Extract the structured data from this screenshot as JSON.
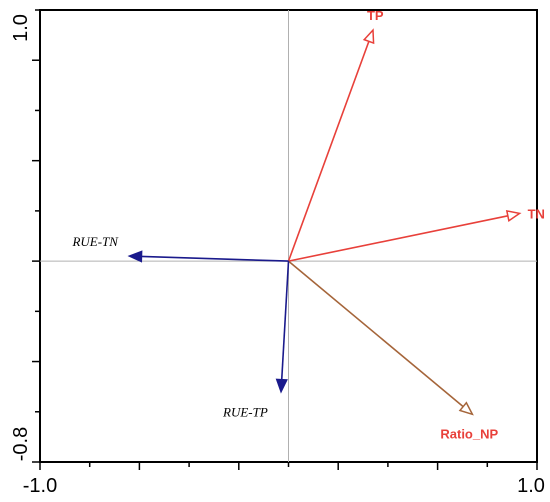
{
  "chart_data": {
    "type": "scatter",
    "subtype": "ordination-biplot",
    "xlim": [
      -1.0,
      1.0
    ],
    "ylim": [
      -0.8,
      1.0
    ],
    "x_tick_labels": [
      "-1.0",
      "1.0"
    ],
    "y_tick_labels": [
      "-0.8",
      "1.0"
    ],
    "grid": false,
    "zero_lines": true,
    "vectors": [
      {
        "name": "TP",
        "x": 0.34,
        "y": 0.92,
        "color": "#e8403a",
        "head": "open",
        "label_style": "bold"
      },
      {
        "name": "TN",
        "x": 0.93,
        "y": 0.19,
        "color": "#e8403a",
        "head": "open",
        "label_style": "bold"
      },
      {
        "name": "Ratio_NP",
        "x": 0.74,
        "y": -0.61,
        "color": "#a5653a",
        "head": "open",
        "label_style": "bold",
        "label_color": "#e8403a"
      },
      {
        "name": "RUE-TN",
        "x": -0.64,
        "y": 0.02,
        "color": "#1a1a8c",
        "head": "filled",
        "label_style": "italic",
        "label_color": "#000000"
      },
      {
        "name": "RUE-TP",
        "x": -0.03,
        "y": -0.52,
        "color": "#1a1a8c",
        "head": "filled",
        "label_style": "italic",
        "label_color": "#000000"
      }
    ]
  }
}
